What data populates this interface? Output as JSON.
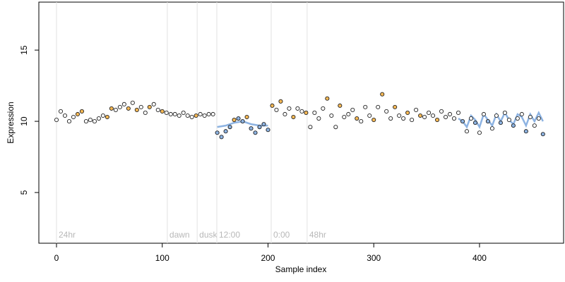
{
  "chart_data": {
    "type": "scatter",
    "xlabel": "Sample index",
    "ylabel": "Expression",
    "xlim": [
      -16.7,
      479.5
    ],
    "ylim": [
      1.44,
      18.37
    ],
    "xticks": [
      0,
      100,
      200,
      300,
      400
    ],
    "yticks": [
      5,
      10,
      15
    ],
    "annotations": [
      {
        "x": 0,
        "text": "24hr"
      },
      {
        "x": 104.8,
        "text": "dawn"
      },
      {
        "x": 133,
        "text": "dusk"
      },
      {
        "x": 151.6,
        "text": "12:00"
      },
      {
        "x": 203,
        "text": "0:00"
      },
      {
        "x": 237,
        "text": "48hr"
      }
    ],
    "x": [
      0,
      4,
      8,
      12,
      16,
      20,
      24,
      28,
      32,
      36,
      40,
      44,
      48,
      52,
      56,
      60,
      64,
      68,
      72,
      76,
      80,
      84,
      88,
      92,
      96,
      100,
      104,
      108,
      112,
      116,
      120,
      124,
      128,
      132,
      136,
      140,
      144,
      148,
      152,
      156,
      160,
      164,
      168,
      172,
      176,
      180,
      184,
      188,
      192,
      196,
      200,
      204,
      208,
      212,
      216,
      220,
      224,
      228,
      232,
      236,
      240,
      244,
      248,
      252,
      256,
      260,
      264,
      268,
      272,
      276,
      280,
      284,
      288,
      292,
      296,
      300,
      304,
      308,
      312,
      316,
      320,
      324,
      328,
      332,
      336,
      340,
      344,
      348,
      352,
      356,
      360,
      364,
      368,
      372,
      376,
      380,
      384,
      388,
      392,
      396,
      400,
      404,
      408,
      412,
      416,
      420,
      424,
      428,
      432,
      436,
      440,
      444,
      448,
      452,
      456,
      460
    ],
    "values": [
      10.1,
      10.7,
      10.4,
      10.0,
      10.3,
      10.5,
      10.7,
      10.0,
      10.1,
      10.0,
      10.2,
      10.4,
      10.3,
      10.9,
      10.8,
      11.0,
      11.2,
      10.9,
      11.3,
      10.8,
      11.0,
      10.6,
      11.0,
      11.2,
      10.8,
      10.7,
      10.6,
      10.5,
      10.5,
      10.4,
      10.6,
      10.4,
      10.3,
      10.4,
      10.5,
      10.4,
      10.5,
      10.5,
      9.2,
      8.9,
      9.3,
      9.6,
      10.1,
      10.2,
      10.0,
      10.3,
      9.5,
      9.2,
      9.6,
      9.8,
      9.4,
      11.1,
      10.8,
      11.4,
      10.5,
      10.9,
      10.3,
      10.9,
      10.7,
      10.6,
      9.6,
      10.6,
      10.2,
      10.9,
      11.6,
      10.4,
      9.6,
      11.1,
      10.3,
      10.5,
      10.8,
      10.2,
      10.0,
      11.0,
      10.4,
      10.1,
      11.0,
      11.9,
      10.7,
      10.2,
      11.0,
      10.4,
      10.2,
      10.6,
      10.1,
      10.8,
      10.4,
      10.3,
      10.6,
      10.4,
      10.1,
      10.7,
      10.3,
      10.5,
      10.2,
      10.6,
      10.0,
      9.3,
      10.2,
      9.9,
      9.2,
      10.5,
      10.0,
      9.5,
      10.4,
      9.9,
      10.6,
      10.1,
      9.7,
      10.2,
      10.5,
      9.3,
      10.3,
      9.7,
      10.2,
      9.1
    ],
    "fills": [
      "#ffffff",
      "#ffffff",
      "#ffffff",
      "#ffffff",
      "#ffffff",
      "#f7b955",
      "#f7b955",
      "#ffffff",
      "#ffffff",
      "#ffffff",
      "#ffffff",
      "#ffffff",
      "#f7b955",
      "#f7b955",
      "#ffffff",
      "#ffffff",
      "#ffffff",
      "#f7b955",
      "#ffffff",
      "#f7b955",
      "#ffffff",
      "#ffffff",
      "#f7b955",
      "#ffffff",
      "#ffffff",
      "#f7b955",
      "#ffffff",
      "#ffffff",
      "#ffffff",
      "#ffffff",
      "#ffffff",
      "#ffffff",
      "#ffffff",
      "#f7b955",
      "#ffffff",
      "#ffffff",
      "#ffffff",
      "#ffffff",
      "#8db3e2",
      "#8db3e2",
      "#8db3e2",
      "#8db3e2",
      "#f7b955",
      "#8db3e2",
      "#8db3e2",
      "#f7b955",
      "#8db3e2",
      "#8db3e2",
      "#8db3e2",
      "#8db3e2",
      "#8db3e2",
      "#f7b955",
      "#ffffff",
      "#f7b955",
      "#ffffff",
      "#ffffff",
      "#f7b955",
      "#ffffff",
      "#ffffff",
      "#f7b955",
      "#ffffff",
      "#ffffff",
      "#ffffff",
      "#ffffff",
      "#f7b955",
      "#ffffff",
      "#ffffff",
      "#f7b955",
      "#ffffff",
      "#ffffff",
      "#ffffff",
      "#f7b955",
      "#ffffff",
      "#ffffff",
      "#ffffff",
      "#f7b955",
      "#ffffff",
      "#f7b955",
      "#ffffff",
      "#ffffff",
      "#f7b955",
      "#ffffff",
      "#ffffff",
      "#f7b955",
      "#ffffff",
      "#ffffff",
      "#f7b955",
      "#ffffff",
      "#ffffff",
      "#ffffff",
      "#f7b955",
      "#ffffff",
      "#ffffff",
      "#ffffff",
      "#ffffff",
      "#ffffff",
      "#8db3e2",
      "#ffffff",
      "#ffffff",
      "#8db3e2",
      "#ffffff",
      "#ffffff",
      "#8db3e2",
      "#ffffff",
      "#ffffff",
      "#8db3e2",
      "#ffffff",
      "#ffffff",
      "#8db3e2",
      "#ffffff",
      "#ffffff",
      "#8db3e2",
      "#ffffff",
      "#ffffff",
      "#ffffff",
      "#8db3e2"
    ],
    "fit": {
      "color": "#8db3e2",
      "x": [
        152,
        160,
        168,
        176,
        184,
        192,
        200,
        202,
        380,
        384,
        388,
        392,
        396,
        400,
        404,
        408,
        412,
        416,
        420,
        424,
        428,
        432,
        436,
        440,
        444,
        448,
        452,
        456,
        460
      ],
      "values": [
        9.6,
        9.7,
        9.9,
        10.0,
        9.8,
        9.7,
        9.7,
        null,
        10.2,
        10.0,
        9.6,
        10.4,
        10.1,
        9.6,
        10.5,
        10.1,
        9.7,
        10.5,
        10.0,
        10.6,
        10.1,
        9.8,
        10.5,
        10.3,
        9.7,
        10.5,
        10.0,
        10.6,
        10.0
      ]
    }
  }
}
